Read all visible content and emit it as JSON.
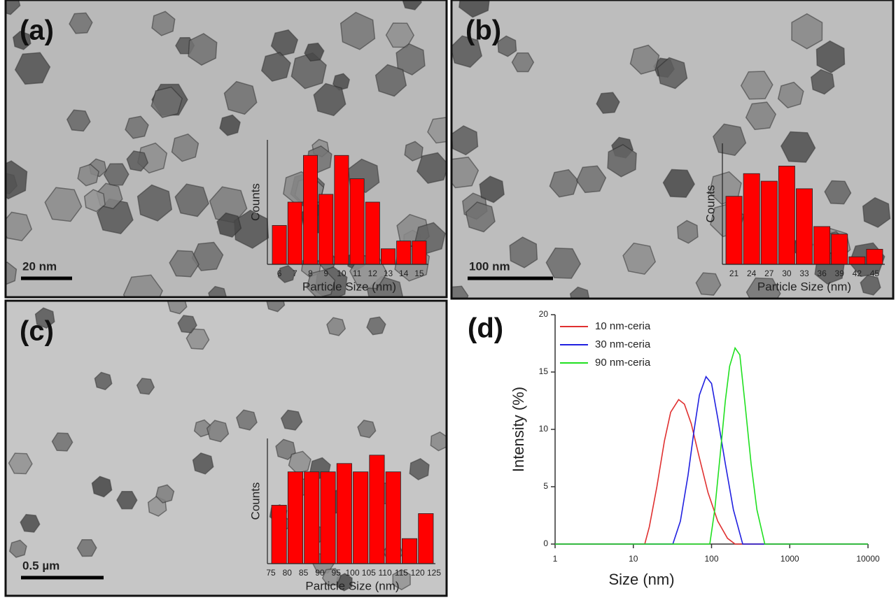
{
  "chart_data": [
    {
      "type": "bar",
      "panel_label": "(a)",
      "scale_bar": "20 nm",
      "ylabel": "Counts",
      "xlabel": "Particle Size (nm)",
      "categories": [
        "6",
        "7",
        "8",
        "9",
        "10",
        "11",
        "12",
        "13",
        "14",
        "15"
      ],
      "values": [
        5,
        8,
        14,
        9,
        14,
        11,
        8,
        2,
        3,
        3
      ],
      "ylim": [
        0,
        16
      ],
      "color": "#ff0000"
    },
    {
      "type": "bar",
      "panel_label": "(b)",
      "scale_bar": "100 nm",
      "ylabel": "Counts",
      "xlabel": "Particle Size (nm)",
      "categories": [
        "21",
        "24",
        "27",
        "30",
        "33",
        "36",
        "39",
        "42",
        "45"
      ],
      "values": [
        9,
        12,
        11,
        13,
        10,
        5,
        4,
        1,
        2
      ],
      "ylim": [
        0,
        16
      ],
      "color": "#ff0000"
    },
    {
      "type": "histogram",
      "panel_label": "(c)",
      "scale_bar": "0.5 µm",
      "ylabel": "Counts",
      "xlabel": "Particle Size (nm)",
      "bins": [
        75,
        80,
        85,
        90,
        95,
        100,
        105,
        110,
        115,
        120,
        125
      ],
      "values": [
        7,
        11,
        11,
        11,
        12,
        11,
        13,
        11,
        3,
        6
      ],
      "ylim": [
        0,
        15
      ],
      "color": "#ff0000"
    },
    {
      "type": "line",
      "panel_label": "(d)",
      "xlabel": "Size (nm)",
      "ylabel": "Intensity (%)",
      "log_x": true,
      "xlim": [
        1,
        10000
      ],
      "xticks": [
        1,
        10,
        100,
        1000,
        10000
      ],
      "ylim": [
        0,
        20
      ],
      "yticks": [
        0,
        5,
        10,
        15,
        20
      ],
      "legend": "upper left",
      "series": [
        {
          "name": "10 nm-ceria",
          "color": "#e03030",
          "x": [
            1,
            14,
            16,
            20,
            25,
            30,
            38,
            45,
            55,
            70,
            90,
            120,
            160,
            200,
            10000
          ],
          "values": [
            0,
            0,
            1.5,
            5,
            9,
            11.5,
            12.6,
            12.2,
            10.5,
            7.5,
            4.5,
            2,
            0.5,
            0,
            0
          ]
        },
        {
          "name": "30 nm-ceria",
          "color": "#2020e0",
          "x": [
            1,
            32,
            40,
            50,
            60,
            70,
            85,
            100,
            120,
            150,
            190,
            250,
            10000
          ],
          "values": [
            0,
            0,
            2,
            6,
            10,
            13,
            14.6,
            14,
            11,
            7,
            3,
            0,
            0
          ]
        },
        {
          "name": "90 nm-ceria",
          "color": "#20e020",
          "x": [
            1,
            95,
            110,
            130,
            150,
            170,
            200,
            230,
            270,
            320,
            380,
            480,
            10000
          ],
          "values": [
            0,
            0,
            3,
            8,
            12.5,
            15.5,
            17.1,
            16.5,
            12,
            7,
            3,
            0,
            0
          ]
        }
      ]
    }
  ]
}
